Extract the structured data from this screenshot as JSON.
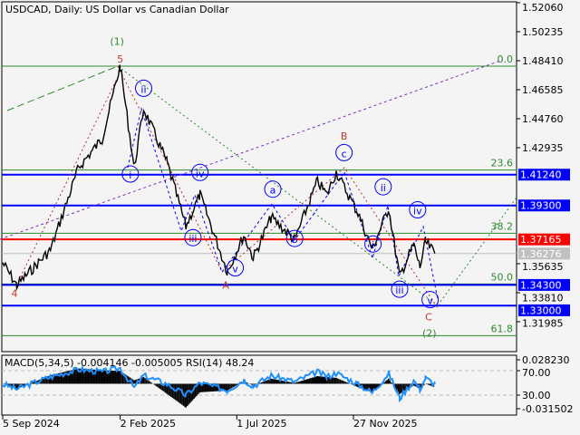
{
  "header": {
    "title": "USDCAD, Daily:  US Dollar vs Canadian Dollar"
  },
  "colors": {
    "background": "#f4f4f4",
    "price": "#000000",
    "support_resistance": "#0000ff",
    "key_level": "#ff0000",
    "current_price": "#c0c0c0",
    "fibonacci": "#2e8b2e",
    "wave_circle": "#0000ff",
    "wave_red": "#c0392b",
    "rsi": "#1e90ff",
    "macd": "#000000"
  },
  "price_axis": {
    "ticks": [
      "1.52060",
      "1.50235",
      "1.48410",
      "1.46585",
      "1.44760",
      "1.42935",
      "1.35635",
      "1.33810",
      "1.31985"
    ],
    "tick_values": [
      1.5206,
      1.50235,
      1.4841,
      1.46585,
      1.4476,
      1.42935,
      1.35635,
      1.3381,
      1.31985
    ]
  },
  "levels": [
    {
      "label": "1.41240",
      "value": 1.4124,
      "color": "#0000ff"
    },
    {
      "label": "1.39300",
      "value": 1.393,
      "color": "#0000ff"
    },
    {
      "label": "1.37165",
      "value": 1.37165,
      "color": "#ff0000"
    },
    {
      "label": "1.36276",
      "value": 1.36276,
      "color": "#c0c0c0"
    },
    {
      "label": "1.34300",
      "value": 1.343,
      "color": "#0000ff"
    },
    {
      "label": "1.33000",
      "value": 1.33,
      "color": "#0000ff"
    }
  ],
  "fibonacci": [
    {
      "label": "0.0",
      "value": 1.4807
    },
    {
      "label": "23.6",
      "value": 1.4153
    },
    {
      "label": "38.2",
      "value": 1.3755
    },
    {
      "label": "50.0",
      "value": 1.3436
    },
    {
      "label": "61.8",
      "value": 1.3111
    }
  ],
  "waves": [
    {
      "label": "(1)",
      "style": "green",
      "date": "2025-01-29",
      "price": 1.494
    },
    {
      "label": "5",
      "style": "red",
      "date": "2025-02-02",
      "price": 1.483
    },
    {
      "label": "4",
      "style": "red",
      "date": "2024-09-20",
      "price": 1.3355
    },
    {
      "label": "ii",
      "style": "circle",
      "date": "2025-03-04",
      "price": 1.4645
    },
    {
      "label": "i",
      "style": "circle",
      "date": "2025-02-15",
      "price": 1.4105
    },
    {
      "label": "iv",
      "style": "circle",
      "date": "2025-05-15",
      "price": 1.4115
    },
    {
      "label": "iii",
      "style": "circle",
      "date": "2025-05-06",
      "price": 1.3705
    },
    {
      "label": "A",
      "style": "red",
      "date": "2025-06-17",
      "price": 1.348
    },
    {
      "label": "v",
      "style": "circle",
      "date": "2025-06-29",
      "price": 1.3515
    },
    {
      "label": "a",
      "style": "circle",
      "date": "2025-08-16",
      "price": 1.401
    },
    {
      "label": "b",
      "style": "circle",
      "date": "2025-09-13",
      "price": 1.37
    },
    {
      "label": "B",
      "style": "red",
      "date": "2025-11-15",
      "price": 1.4345
    },
    {
      "label": "c",
      "style": "circle",
      "date": "2025-11-15",
      "price": 1.424
    },
    {
      "label": "ii",
      "style": "circle",
      "date": "2026-01-04",
      "price": 1.4025
    },
    {
      "label": "iv",
      "style": "circle",
      "date": "2026-02-17",
      "price": 1.388
    },
    {
      "label": "i",
      "style": "circle",
      "date": "2025-12-22",
      "price": 1.3665
    },
    {
      "label": "iii",
      "style": "circle",
      "date": "2026-01-25",
      "price": 1.338
    },
    {
      "label": "v",
      "style": "circle",
      "date": "2026-03-05",
      "price": 1.3315
    },
    {
      "label": "C",
      "style": "red",
      "date": "2026-03-03",
      "price": 1.3235
    },
    {
      "label": "(2)",
      "style": "green",
      "date": "2026-03-04",
      "price": 1.315
    }
  ],
  "indicator": {
    "label": "MACD(5,34,5) -0.004146 -0.005005 RSI(14) 48.24",
    "ticks": [
      "0.028230",
      "70.00",
      "30.00",
      "-0.031502"
    ]
  },
  "date_axis": {
    "ticks": [
      "5 Sep 2024",
      "2 Feb 2025",
      "1 Jul 2025",
      "27 Nov 2025"
    ],
    "tick_dates": [
      "2024-09-05",
      "2025-02-02",
      "2025-07-01",
      "2025-11-27"
    ]
  },
  "chart_data": {
    "type": "line",
    "title": "USDCAD, Daily:  US Dollar vs Canadian Dollar",
    "ylim": [
      1.3,
      1.5206
    ],
    "dates": [
      "2024-09-05",
      "2024-09-23",
      "2024-11-05",
      "2024-12-11",
      "2025-01-10",
      "2025-02-02",
      "2025-02-20",
      "2025-03-04",
      "2025-04-03",
      "2025-04-27",
      "2025-05-15",
      "2025-06-19",
      "2025-07-10",
      "2025-07-22",
      "2025-08-14",
      "2025-09-13",
      "2025-10-12",
      "2025-10-24",
      "2025-11-05",
      "2025-12-03",
      "2025-12-21",
      "2026-01-11",
      "2026-01-25",
      "2026-02-12",
      "2026-02-20",
      "2026-02-27",
      "2026-03-11"
    ],
    "price": [
      1.3569,
      1.3427,
      1.365,
      1.4169,
      1.435,
      1.4807,
      1.4169,
      1.4539,
      1.42,
      1.3798,
      1.3998,
      1.3513,
      1.3741,
      1.36,
      1.3855,
      1.3713,
      1.4083,
      1.3998,
      1.414,
      1.388,
      1.3656,
      1.3912,
      1.3485,
      1.3684,
      1.3542,
      1.37,
      1.3628
    ],
    "macd": [
      0.0,
      -0.006,
      0.01,
      0.018,
      0.016,
      0.015,
      0.004,
      0.008,
      -0.012,
      -0.028,
      -0.01,
      -0.008,
      0.003,
      -0.002,
      0.006,
      0.001,
      0.009,
      0.008,
      0.007,
      -0.004,
      -0.01,
      0.006,
      -0.012,
      -0.002,
      -0.006,
      0.0,
      -0.004
    ],
    "rsi": [
      48,
      40,
      60,
      72,
      68,
      74,
      42,
      62,
      48,
      30,
      50,
      38,
      55,
      45,
      62,
      52,
      68,
      60,
      66,
      48,
      34,
      66,
      25,
      54,
      40,
      58,
      48
    ]
  }
}
